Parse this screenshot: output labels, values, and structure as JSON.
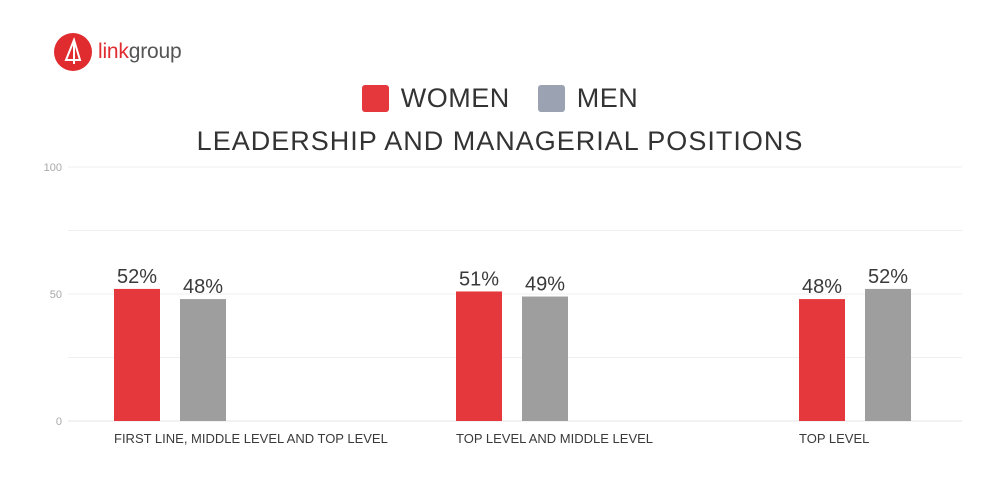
{
  "brand": {
    "logo_icon": "sail-logo-icon",
    "name_part1": "link",
    "name_part2": "group",
    "color": "#e02b2f"
  },
  "legend": [
    {
      "label": "WOMEN",
      "color": "#e5383d"
    },
    {
      "label": "MEN",
      "color": "#9ba3b3"
    }
  ],
  "chart_data": {
    "type": "bar",
    "title": "LEADERSHIP AND MANAGERIAL POSITIONS",
    "categories": [
      "FIRST LINE, MIDDLE LEVEL AND TOP LEVEL",
      "TOP LEVEL AND MIDDLE LEVEL",
      "TOP LEVEL"
    ],
    "series": [
      {
        "name": "WOMEN",
        "values": [
          52,
          51,
          48
        ],
        "labels": [
          "52%",
          "51%",
          "48%"
        ],
        "color": "#e5383d"
      },
      {
        "name": "MEN",
        "values": [
          48,
          49,
          52
        ],
        "labels": [
          "48%",
          "49%",
          "52%"
        ],
        "color": "#9e9e9e"
      }
    ],
    "ylim": [
      0,
      100
    ],
    "yticks": [
      0,
      50,
      100
    ],
    "grid": true,
    "legend_position": "top-center"
  }
}
